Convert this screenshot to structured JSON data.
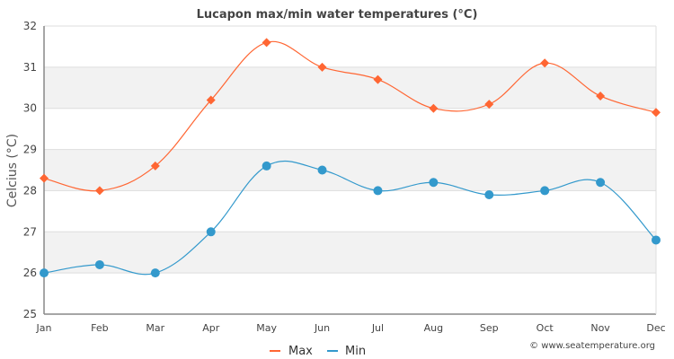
{
  "chart_data": {
    "type": "line",
    "title": "Lucapon max/min water temperatures (°C)",
    "xlabel": "",
    "ylabel": "Celcius (°C)",
    "categories": [
      "Jan",
      "Feb",
      "Mar",
      "Apr",
      "May",
      "Jun",
      "Jul",
      "Aug",
      "Sep",
      "Oct",
      "Nov",
      "Dec"
    ],
    "ylim": [
      25,
      32
    ],
    "yticks": [
      25,
      26,
      27,
      28,
      29,
      30,
      31,
      32
    ],
    "grid": true,
    "legend_position": "bottom-center",
    "series": [
      {
        "name": "Max",
        "color": "#ff6633",
        "marker": "diamond",
        "values": [
          28.3,
          28.0,
          28.6,
          30.2,
          31.6,
          31.0,
          30.7,
          30.0,
          30.1,
          31.1,
          30.3,
          29.9
        ]
      },
      {
        "name": "Min",
        "color": "#3399cc",
        "marker": "circle",
        "values": [
          26.0,
          26.2,
          26.0,
          27.0,
          28.6,
          28.5,
          28.0,
          28.2,
          27.9,
          28.0,
          28.2,
          26.8
        ]
      }
    ],
    "credit": "© www.seatemperature.org"
  }
}
